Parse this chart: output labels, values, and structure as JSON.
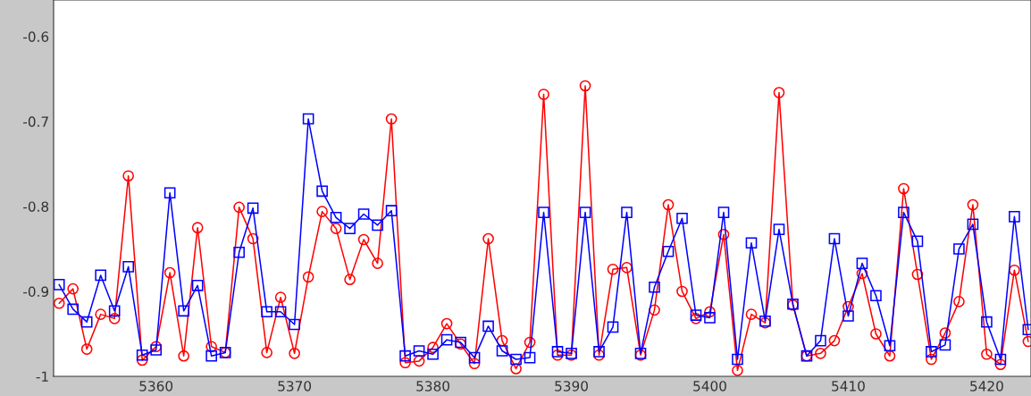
{
  "chart_data": {
    "type": "line",
    "x": [
      5353,
      5354,
      5355,
      5356,
      5357,
      5358,
      5359,
      5360,
      5361,
      5362,
      5363,
      5364,
      5365,
      5366,
      5367,
      5368,
      5369,
      5370,
      5371,
      5372,
      5373,
      5374,
      5375,
      5376,
      5377,
      5378,
      5379,
      5380,
      5381,
      5382,
      5383,
      5384,
      5385,
      5386,
      5387,
      5388,
      5389,
      5390,
      5391,
      5392,
      5393,
      5394,
      5395,
      5396,
      5397,
      5398,
      5399,
      5400,
      5401,
      5402,
      5403,
      5404,
      5405,
      5406,
      5407,
      5408,
      5409,
      5410,
      5411,
      5412,
      5413,
      5414,
      5415,
      5416,
      5417,
      5418,
      5419,
      5420,
      5421,
      5422,
      5423
    ],
    "series": [
      {
        "color": "#ff0000",
        "marker": "circle",
        "values": [
          -0.914,
          -0.897,
          -0.968,
          -0.927,
          -0.932,
          -0.764,
          -0.981,
          -0.965,
          -0.878,
          -0.976,
          -0.825,
          -0.965,
          -0.972,
          -0.801,
          -0.838,
          -0.972,
          -0.907,
          -0.973,
          -0.883,
          -0.806,
          -0.826,
          -0.886,
          -0.839,
          -0.867,
          -0.697,
          -0.984,
          -0.982,
          -0.966,
          -0.938,
          -0.962,
          -0.985,
          -0.838,
          -0.958,
          -0.991,
          -0.96,
          -0.668,
          -0.975,
          -0.975,
          -0.658,
          -0.975,
          -0.874,
          -0.872,
          -0.975,
          -0.922,
          -0.798,
          -0.9,
          -0.932,
          -0.924,
          -0.833,
          -0.993,
          -0.927,
          -0.937,
          -0.666,
          -0.916,
          -0.976,
          -0.973,
          -0.958,
          -0.918,
          -0.879,
          -0.95,
          -0.976,
          -0.779,
          -0.88,
          -0.98,
          -0.949,
          -0.912,
          -0.798,
          -0.974,
          -0.986,
          -0.875,
          -0.959
        ]
      },
      {
        "color": "#0000ff",
        "marker": "square",
        "values": [
          -0.892,
          -0.921,
          -0.936,
          -0.881,
          -0.923,
          -0.871,
          -0.975,
          -0.969,
          -0.784,
          -0.923,
          -0.893,
          -0.976,
          -0.972,
          -0.854,
          -0.802,
          -0.924,
          -0.924,
          -0.939,
          -0.697,
          -0.782,
          -0.813,
          -0.826,
          -0.809,
          -0.822,
          -0.805,
          -0.976,
          -0.97,
          -0.974,
          -0.957,
          -0.96,
          -0.978,
          -0.941,
          -0.97,
          -0.98,
          -0.978,
          -0.807,
          -0.971,
          -0.973,
          -0.807,
          -0.971,
          -0.942,
          -0.807,
          -0.973,
          -0.895,
          -0.853,
          -0.814,
          -0.928,
          -0.931,
          -0.807,
          -0.98,
          -0.843,
          -0.935,
          -0.827,
          -0.915,
          -0.976,
          -0.958,
          -0.838,
          -0.929,
          -0.867,
          -0.905,
          -0.964,
          -0.807,
          -0.841,
          -0.971,
          -0.963,
          -0.85,
          -0.821,
          -0.936,
          -0.98,
          -0.812,
          -0.945
        ]
      }
    ],
    "xlim": [
      5352.6,
      5423.2
    ],
    "xticks": [
      5360,
      5370,
      5380,
      5390,
      5400,
      5410,
      5420
    ],
    "ylim": [
      -1,
      -0.557
    ],
    "yticks": [
      -1,
      -0.9,
      -0.8,
      -0.7,
      -0.6
    ],
    "grid": false,
    "legend": false,
    "line_style": "solid"
  }
}
